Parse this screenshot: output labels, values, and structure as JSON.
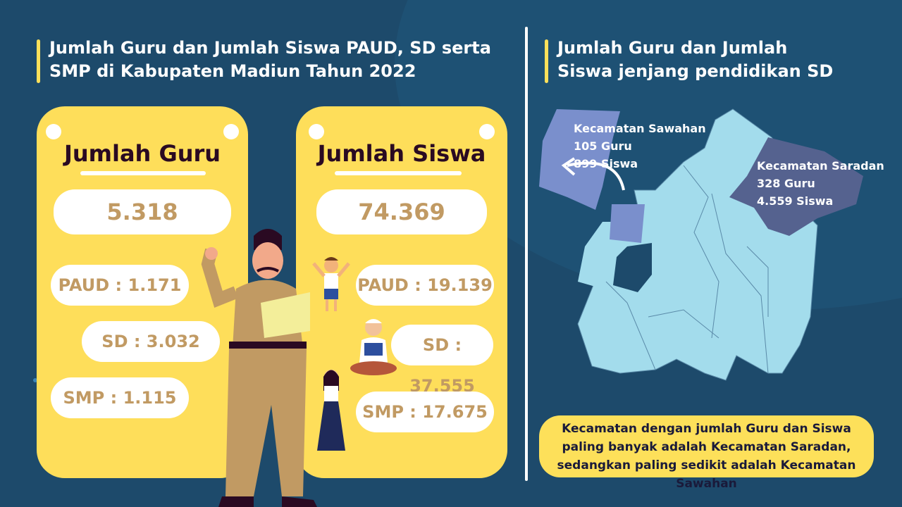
{
  "left": {
    "title": "Jumlah Guru dan Jumlah Siswa PAUD, SD serta SMP di Kabupaten Madiun Tahun 2022",
    "guru": {
      "heading": "Jumlah Guru",
      "total": "5.318",
      "paud": "PAUD : 1.171",
      "sd": "SD : 3.032",
      "smp": "SMP : 1.115"
    },
    "siswa": {
      "heading": "Jumlah Siswa",
      "total": "74.369",
      "paud": "PAUD : 19.139",
      "sd": "SD : 37.555",
      "smp": "SMP : 17.675"
    }
  },
  "right": {
    "title": "Jumlah Guru dan Jumlah Siswa jenjang pendidikan SD",
    "sawahan": {
      "name": "Kecamatan Sawahan",
      "guru": "105 Guru",
      "siswa": "899 Siswa"
    },
    "saradan": {
      "name": "Kecamatan Saradan",
      "guru": "328 Guru",
      "siswa": "4.559 Siswa"
    },
    "note": "Kecamatan dengan jumlah Guru dan Siswa paling banyak adalah Kecamatan Saradan, sedangkan paling sedikit adalah Kecamatan Sawahan"
  },
  "colors": {
    "background": "#1d4a6b",
    "card": "#fede5a",
    "value": "#c19a63",
    "map": "#a3dcec",
    "sawahan": "#7a8fcc",
    "saradan": "#55628f"
  }
}
